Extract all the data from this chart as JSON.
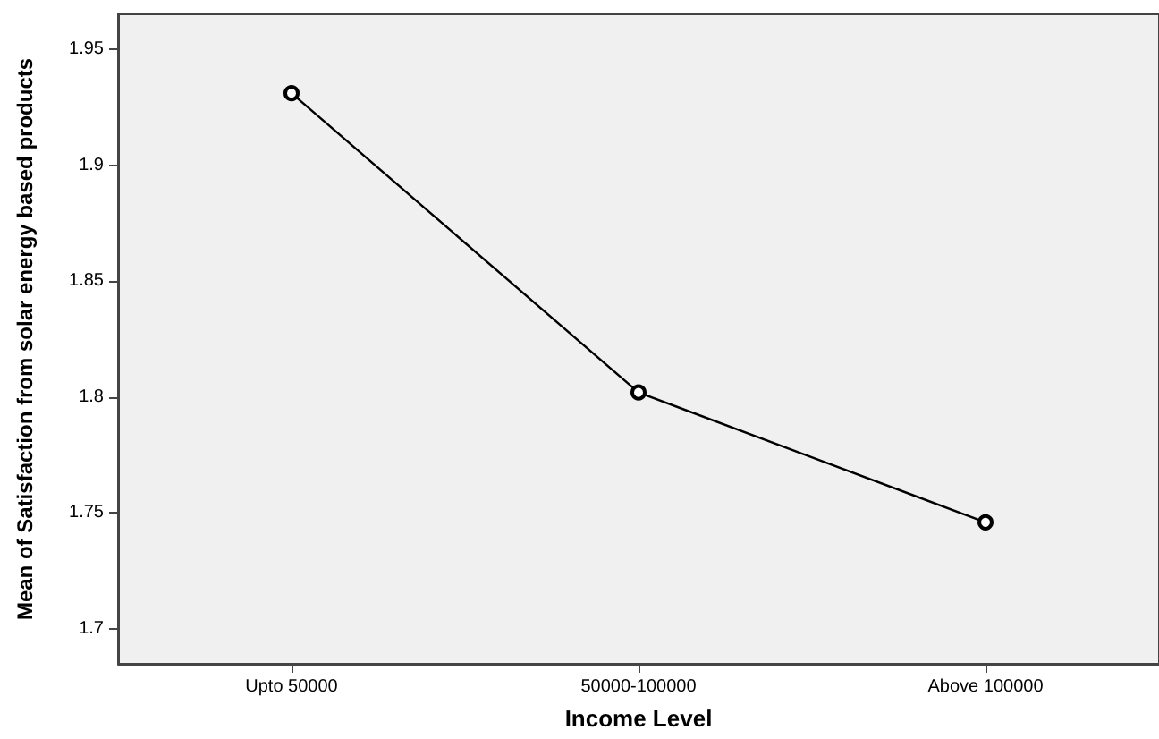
{
  "chart_data": {
    "type": "line",
    "xlabel": "Income Level",
    "ylabel": "Mean of Satisfaction from solar energy based products",
    "categories": [
      "Upto 50000",
      "50000-100000",
      "Above 100000"
    ],
    "series": [
      {
        "color": "#000000",
        "values": [
          1.931,
          1.802,
          1.746
        ]
      }
    ],
    "ylim": [
      1.685,
      1.965
    ],
    "yticks": [
      1.7,
      1.75,
      1.8,
      1.85,
      1.9,
      1.95
    ],
    "marker": "circle",
    "line_style": "solid"
  }
}
